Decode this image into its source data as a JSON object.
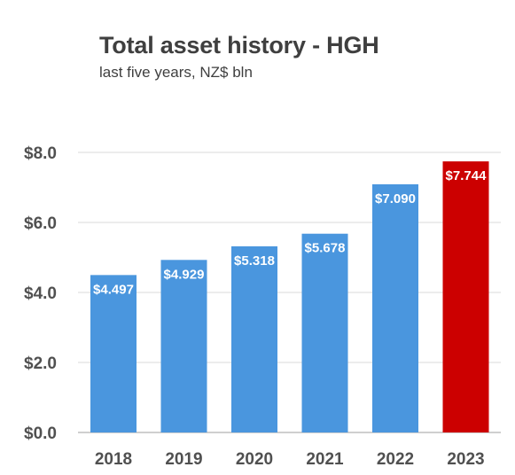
{
  "chart_data": {
    "type": "bar",
    "title": "Total asset history - HGH",
    "subtitle": "last five years, NZ$ bln",
    "categories": [
      "2018",
      "2019",
      "2020",
      "2021",
      "2022",
      "2023"
    ],
    "values": [
      4.497,
      4.929,
      5.318,
      5.678,
      7.09,
      7.744
    ],
    "data_labels": [
      "$4.497",
      "$4.929",
      "$5.318",
      "$5.678",
      "$7.090",
      "$7.744"
    ],
    "y_ticks": [
      "$0.0",
      "$2.0",
      "$4.0",
      "$6.0",
      "$8.0"
    ],
    "y_tick_values": [
      0,
      2,
      4,
      6,
      8
    ],
    "ylim": [
      0,
      8
    ],
    "grid": true,
    "legend": "none",
    "colors": {
      "bar": "#4a96de",
      "highlight": "#cc0000",
      "grid": "#d9d9d9",
      "axis": "#bfbfbf"
    },
    "highlight_index": 5
  }
}
